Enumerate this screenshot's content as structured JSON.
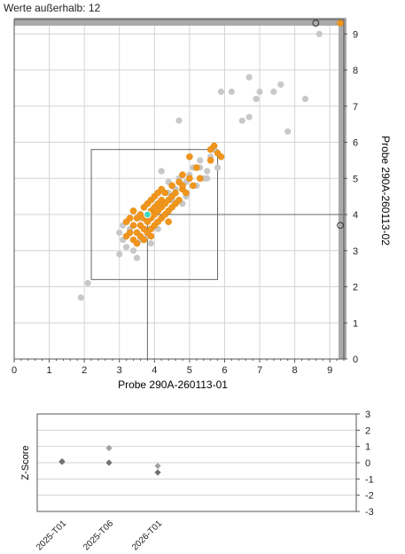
{
  "header": {
    "outliers_text": "Werte außerhalb: 12"
  },
  "colors": {
    "grid": "#d4d4d4",
    "frame": "#555555",
    "border_bar": "#aaaaaa",
    "participant": "#f0961e",
    "participant_edge": "#e08000",
    "others": "#c8c8c8",
    "own_result": "#3cd8c0",
    "box": "#666666",
    "zscore_marker": "#707070",
    "zscore_marker_light": "#a0a0a0"
  },
  "chart_data": [
    {
      "type": "scatter",
      "name": "youden-plot",
      "xlabel": "Probe 290A-260113-01",
      "ylabel": "Probe 290A-260113-02",
      "xlim": [
        0,
        9.4
      ],
      "ylim": [
        0,
        9.4
      ],
      "x_ticks": [
        0,
        1,
        2,
        3,
        4,
        5,
        6,
        7,
        8,
        9
      ],
      "y_ticks": [
        0,
        1,
        2,
        3,
        4,
        5,
        6,
        7,
        8,
        9
      ],
      "grid": true,
      "target_box": {
        "x": [
          2.2,
          5.8
        ],
        "y": [
          2.2,
          5.8
        ]
      },
      "own_result": {
        "x": 3.8,
        "y": 4.0
      },
      "series": [
        {
          "key": "others",
          "points": [
            [
              1.9,
              1.7
            ],
            [
              2.1,
              2.1
            ],
            [
              3.0,
              2.9
            ],
            [
              3.0,
              3.5
            ],
            [
              3.1,
              3.3
            ],
            [
              3.2,
              3.1
            ],
            [
              3.1,
              3.7
            ],
            [
              3.3,
              3.6
            ],
            [
              3.4,
              3.0
            ],
            [
              3.5,
              2.8
            ],
            [
              3.6,
              3.3
            ],
            [
              3.7,
              3.6
            ],
            [
              3.9,
              3.2
            ],
            [
              3.8,
              3.4
            ],
            [
              4.1,
              3.6
            ],
            [
              4.2,
              5.2
            ],
            [
              4.4,
              4.9
            ],
            [
              4.5,
              4.4
            ],
            [
              4.6,
              4.7
            ],
            [
              4.7,
              5.0
            ],
            [
              4.8,
              4.3
            ],
            [
              4.9,
              4.5
            ],
            [
              4.9,
              4.9
            ],
            [
              5.0,
              5.1
            ],
            [
              5.1,
              5.3
            ],
            [
              5.2,
              4.8
            ],
            [
              5.3,
              5.5
            ],
            [
              5.4,
              5.0
            ],
            [
              5.5,
              5.2
            ],
            [
              5.6,
              5.6
            ],
            [
              5.7,
              5.8
            ],
            [
              5.8,
              5.3
            ],
            [
              5.5,
              5.0
            ],
            [
              4.7,
              6.6
            ],
            [
              5.9,
              7.4
            ],
            [
              6.2,
              7.4
            ],
            [
              6.5,
              6.6
            ],
            [
              6.7,
              6.7
            ],
            [
              6.7,
              7.8
            ],
            [
              6.9,
              7.2
            ],
            [
              7.0,
              7.4
            ],
            [
              7.4,
              7.4
            ],
            [
              7.6,
              7.6
            ],
            [
              7.8,
              6.3
            ],
            [
              8.3,
              7.2
            ],
            [
              8.7,
              9.0
            ],
            [
              5.3,
              5.3
            ],
            [
              4.4,
              4.6
            ],
            [
              3.6,
              3.9
            ]
          ]
        },
        {
          "key": "participant",
          "points": [
            [
              3.2,
              3.8
            ],
            [
              3.3,
              3.5
            ],
            [
              3.3,
              3.9
            ],
            [
              3.4,
              3.3
            ],
            [
              3.4,
              3.7
            ],
            [
              3.5,
              3.2
            ],
            [
              3.5,
              3.5
            ],
            [
              3.5,
              3.9
            ],
            [
              3.6,
              3.4
            ],
            [
              3.6,
              3.7
            ],
            [
              3.6,
              4.0
            ],
            [
              3.7,
              3.3
            ],
            [
              3.7,
              3.6
            ],
            [
              3.7,
              3.9
            ],
            [
              3.7,
              4.2
            ],
            [
              3.8,
              3.5
            ],
            [
              3.8,
              3.8
            ],
            [
              3.8,
              4.3
            ],
            [
              3.9,
              3.6
            ],
            [
              3.9,
              3.9
            ],
            [
              3.9,
              4.1
            ],
            [
              3.9,
              4.4
            ],
            [
              4.0,
              3.7
            ],
            [
              4.0,
              4.0
            ],
            [
              4.0,
              4.2
            ],
            [
              4.0,
              4.5
            ],
            [
              4.1,
              3.8
            ],
            [
              4.1,
              4.1
            ],
            [
              4.1,
              4.3
            ],
            [
              4.1,
              4.6
            ],
            [
              4.2,
              3.9
            ],
            [
              4.2,
              4.2
            ],
            [
              4.2,
              4.4
            ],
            [
              4.3,
              4.0
            ],
            [
              4.3,
              4.3
            ],
            [
              4.3,
              4.6
            ],
            [
              4.4,
              4.1
            ],
            [
              4.4,
              4.4
            ],
            [
              4.5,
              4.2
            ],
            [
              4.5,
              4.5
            ],
            [
              4.6,
              4.3
            ],
            [
              4.6,
              4.6
            ],
            [
              4.7,
              4.4
            ],
            [
              4.8,
              4.7
            ],
            [
              4.9,
              4.6
            ],
            [
              4.5,
              4.8
            ],
            [
              4.7,
              4.9
            ],
            [
              4.8,
              5.1
            ],
            [
              5.0,
              5.0
            ],
            [
              5.1,
              4.8
            ],
            [
              5.2,
              5.3
            ],
            [
              5.0,
              5.6
            ],
            [
              5.6,
              5.5
            ],
            [
              5.7,
              5.9
            ],
            [
              5.8,
              5.7
            ],
            [
              5.6,
              5.8
            ],
            [
              5.9,
              5.6
            ],
            [
              3.4,
              4.1
            ],
            [
              3.2,
              3.4
            ],
            [
              4.2,
              4.7
            ],
            [
              4.8,
              4.8
            ],
            [
              5.3,
              5.0
            ],
            [
              4.4,
              3.8
            ],
            [
              3.9,
              3.4
            ],
            [
              9.3,
              9.3
            ]
          ]
        }
      ],
      "out_of_range": [
        {
          "x": 8.6,
          "y": 9.3,
          "key": "others"
        },
        {
          "x": 9.3,
          "y": 3.7,
          "key": "others"
        }
      ]
    },
    {
      "type": "scatter",
      "name": "z-score-history",
      "ylabel": "Z-Score",
      "categories": [
        "2025-T01",
        "2025-T06",
        "2026-T01"
      ],
      "ylim": [
        -3,
        3
      ],
      "y_ticks": [
        3,
        2,
        1,
        0,
        -1,
        -2,
        -3
      ],
      "grid": true,
      "series": [
        {
          "key": "sample-1",
          "values": [
            0.1,
            0.9,
            -0.2
          ]
        },
        {
          "key": "sample-2",
          "values": [
            0.05,
            0.0,
            -0.6
          ]
        }
      ]
    }
  ]
}
